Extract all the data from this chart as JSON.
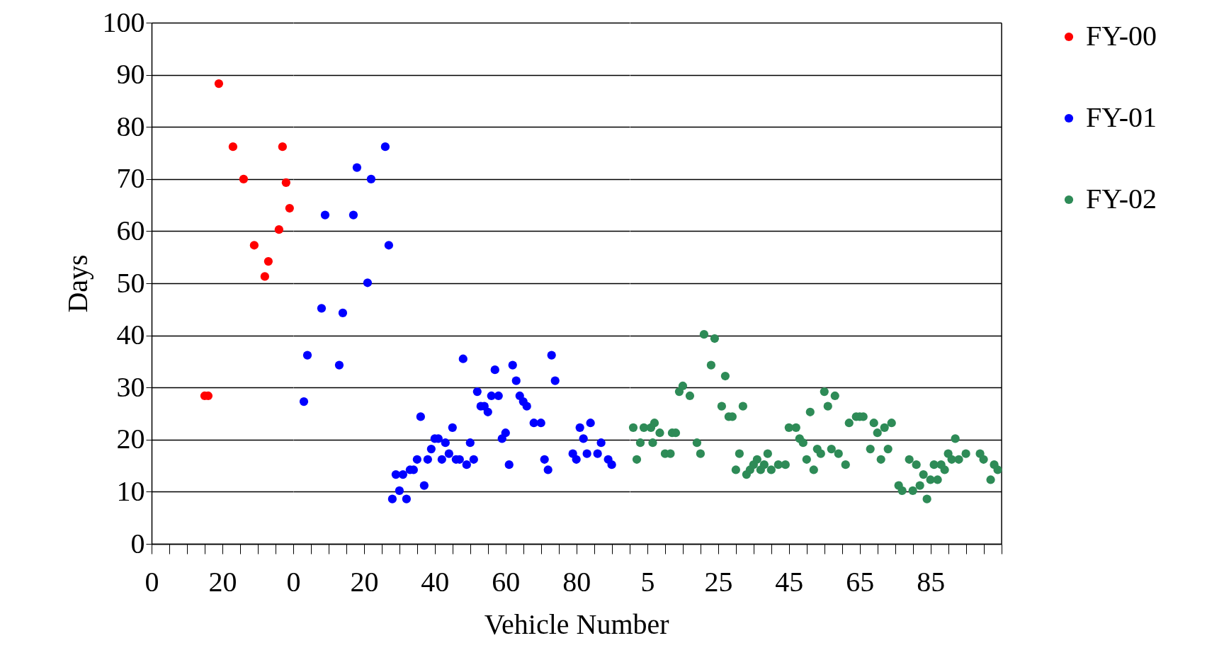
{
  "chart_data": [
    {
      "type": "scatter",
      "ylabel": "Days",
      "xlim": [
        0,
        40
      ],
      "ylim": [
        0,
        100
      ],
      "grid": "y",
      "marker": "circle",
      "xticks": [
        0,
        {
          "value": 5,
          "label": null
        },
        {
          "value": 10,
          "label": null
        },
        {
          "value": 15,
          "label": null
        },
        20,
        {
          "value": 25,
          "label": null
        },
        {
          "value": 30,
          "label": null
        },
        {
          "value": 35,
          "label": null
        }
      ],
      "yticks": [
        0,
        10,
        20,
        30,
        40,
        50,
        60,
        70,
        80,
        90,
        100
      ],
      "series": [
        {
          "name": "FY-00",
          "color": "#ff0000",
          "x": [
            15,
            16,
            19,
            23,
            26,
            29,
            32,
            33,
            36,
            37,
            38,
            39
          ],
          "values": [
            28.4,
            28.4,
            88.3,
            76.2,
            70,
            57.3,
            51.3,
            54.2,
            60.3,
            76.2,
            69.3,
            64.4
          ]
        }
      ]
    },
    {
      "type": "scatter",
      "xlabel": "Vehicle Number",
      "xlim": [
        0,
        95
      ],
      "ylim": [
        0,
        100
      ],
      "grid": "y",
      "marker": "circle",
      "tick_labels": "x",
      "xticks": [
        0,
        {
          "value": 5,
          "label": null
        },
        {
          "value": 10,
          "label": null
        },
        {
          "value": 15,
          "label": null
        },
        20,
        {
          "value": 25,
          "label": null
        },
        {
          "value": 30,
          "label": null
        },
        {
          "value": 35,
          "label": null
        },
        40,
        {
          "value": 45,
          "label": null
        },
        {
          "value": 50,
          "label": null
        },
        {
          "value": 55,
          "label": null
        },
        60,
        {
          "value": 65,
          "label": null
        },
        {
          "value": 70,
          "label": null
        },
        {
          "value": 75,
          "label": null
        },
        80,
        {
          "value": 85,
          "label": null
        },
        {
          "value": 90,
          "label": null
        }
      ],
      "yticks": [
        0,
        10,
        20,
        30,
        40,
        50,
        60,
        70,
        80,
        90,
        100
      ],
      "series": [
        {
          "name": "FY-01",
          "color": "#0000ff",
          "x": [
            3,
            4,
            8,
            9,
            13,
            14,
            17,
            18,
            21,
            22,
            26,
            27,
            28,
            29,
            30,
            31,
            32,
            33,
            34,
            35,
            36,
            37,
            38,
            39,
            40,
            41,
            42,
            43,
            44,
            45,
            46,
            47,
            48,
            49,
            50,
            51,
            52,
            53,
            54,
            55,
            56,
            57,
            58,
            59,
            60,
            61,
            62,
            63,
            64,
            65,
            66,
            68,
            70,
            71,
            72,
            73,
            74,
            79,
            80,
            81,
            82,
            83,
            84,
            86,
            87,
            89,
            90
          ],
          "values": [
            27.3,
            36.2,
            45.2,
            63.1,
            34.3,
            44.3,
            63.1,
            72.2,
            50.1,
            70,
            76.2,
            57.3,
            8.6,
            13.3,
            10.2,
            13.3,
            8.6,
            14.2,
            14.2,
            16.2,
            24.4,
            11.2,
            16.2,
            18.2,
            20.2,
            20.2,
            16.2,
            19.4,
            17.3,
            22.3,
            16.2,
            16.2,
            35.5,
            15.2,
            19.4,
            16.2,
            29.2,
            26.4,
            26.4,
            25.3,
            28.4,
            33.4,
            28.4,
            20.2,
            21.3,
            15.2,
            34.3,
            31.3,
            28.4,
            27.3,
            26.4,
            23.2,
            23.2,
            16.2,
            14.2,
            36.2,
            31.3,
            17.3,
            16.2,
            22.3,
            20.2,
            17.3,
            23.2,
            17.3,
            19.4,
            16.2,
            15.2
          ]
        }
      ]
    },
    {
      "type": "scatter",
      "xlim": [
        0,
        105
      ],
      "ylim": [
        0,
        100
      ],
      "grid": "y",
      "marker": "circle",
      "tick_labels": "x",
      "legend": "right",
      "xticks": [
        {
          "value": 0,
          "label": null
        },
        5,
        {
          "value": 10,
          "label": null
        },
        {
          "value": 15,
          "label": null
        },
        {
          "value": 20,
          "label": null
        },
        25,
        {
          "value": 30,
          "label": null
        },
        {
          "value": 35,
          "label": null
        },
        {
          "value": 40,
          "label": null
        },
        45,
        {
          "value": 50,
          "label": null
        },
        {
          "value": 55,
          "label": null
        },
        {
          "value": 60,
          "label": null
        },
        65,
        {
          "value": 70,
          "label": null
        },
        {
          "value": 75,
          "label": null
        },
        {
          "value": 80,
          "label": null
        },
        85,
        {
          "value": 90,
          "label": null
        },
        {
          "value": 95,
          "label": null
        },
        {
          "value": 100,
          "label": null
        },
        {
          "value": 105,
          "label": null
        }
      ],
      "yticks": [
        0,
        10,
        20,
        30,
        40,
        50,
        60,
        70,
        80,
        90,
        100
      ],
      "series": [
        {
          "name": "FY-02",
          "color": "#2e8b57",
          "x": [
            1,
            2,
            3,
            4,
            6,
            6.5,
            7,
            8.5,
            10,
            11.5,
            12,
            13,
            14,
            15,
            17,
            19,
            20,
            21,
            23,
            24,
            26,
            27,
            28,
            29,
            30,
            31,
            32,
            33,
            34,
            35,
            36,
            37,
            38,
            39,
            40,
            42,
            44,
            45,
            47,
            48,
            49,
            50,
            51,
            52,
            53,
            54,
            55,
            56,
            57,
            58,
            59,
            61,
            62,
            64,
            65,
            66,
            68,
            69,
            70,
            71,
            72,
            73,
            74,
            76,
            77,
            79,
            80,
            81,
            82,
            83,
            84,
            85,
            86,
            87,
            88,
            89,
            90,
            91,
            92,
            93,
            95,
            99,
            100,
            102,
            103,
            104
          ],
          "values": [
            22.3,
            16.2,
            19.4,
            22.3,
            22.3,
            19.4,
            23.2,
            21.3,
            17.3,
            17.3,
            21.3,
            21.3,
            29.2,
            30.3,
            28.4,
            19.4,
            17.3,
            40.2,
            34.3,
            39.4,
            26.4,
            32.2,
            24.4,
            24.4,
            14.2,
            17.3,
            26.4,
            13.3,
            14.2,
            15.2,
            16.2,
            14.2,
            15.2,
            17.3,
            14.2,
            15.2,
            15.2,
            22.3,
            22.3,
            20.2,
            19.4,
            16.2,
            25.3,
            14.2,
            18.2,
            17.3,
            29.2,
            26.4,
            18.2,
            28.4,
            17.3,
            15.2,
            23.2,
            24.4,
            24.4,
            24.4,
            18.2,
            23.2,
            21.3,
            16.2,
            22.3,
            18.2,
            23.2,
            11.2,
            10.2,
            16.2,
            10.2,
            15.2,
            11.2,
            13.3,
            8.6,
            12.3,
            15.2,
            12.3,
            15.2,
            14.2,
            17.3,
            16.2,
            20.2,
            16.2,
            17.3,
            17.3,
            16.2,
            12.3,
            15.2,
            14.2
          ]
        }
      ]
    }
  ]
}
